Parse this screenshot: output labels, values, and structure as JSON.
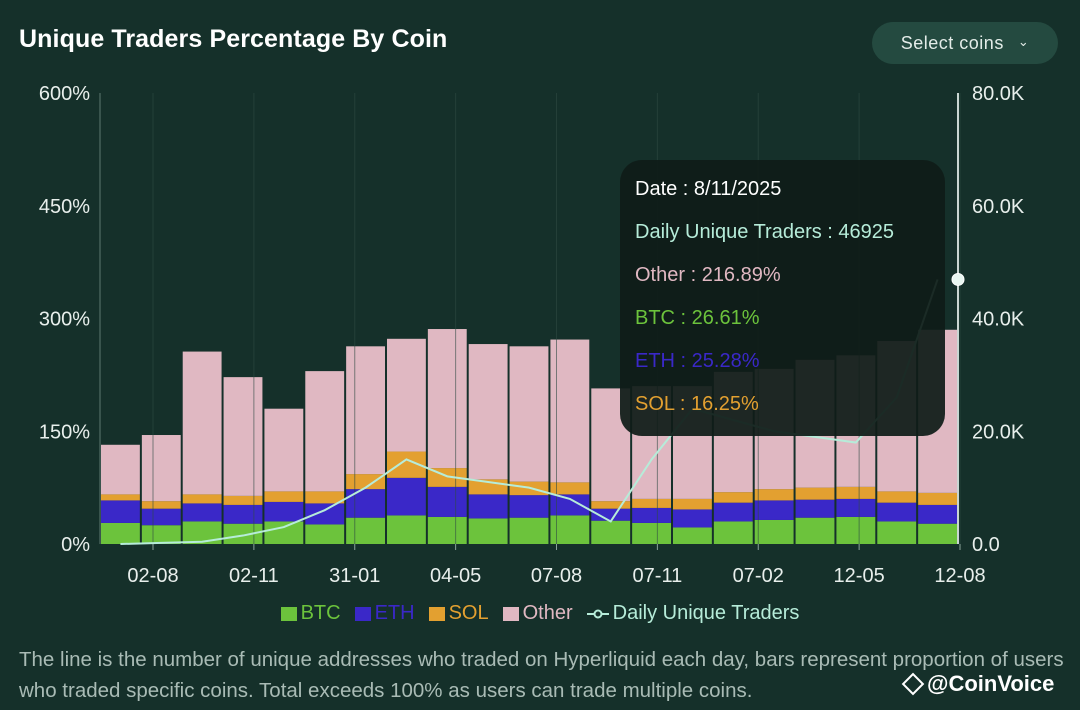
{
  "title": "Unique Traders Percentage By Coin",
  "select_button": {
    "label": "Select coins",
    "icon": "chevron-down-icon"
  },
  "colors": {
    "background": "#15302a",
    "btc": "#6cc33c",
    "eth": "#3a28c8",
    "sol": "#e3a030",
    "other": "#e0b8c2",
    "daily": "#b6ecd9"
  },
  "chart_data": {
    "type": "bar",
    "stacked": true,
    "y_left_ticks": [
      "0%",
      "150%",
      "300%",
      "450%",
      "600%"
    ],
    "y_left_range": [
      0,
      600
    ],
    "y_right_ticks": [
      "0.0",
      "20.0K",
      "40.0K",
      "60.0K",
      "80.0K"
    ],
    "y_right_range": [
      0,
      80000
    ],
    "x_ticks": [
      "02-08",
      "02-11",
      "31-01",
      "04-05",
      "07-08",
      "07-11",
      "07-02",
      "12-05",
      "12-08"
    ],
    "series": [
      {
        "name": "BTC",
        "values": [
          28,
          25,
          30,
          27,
          30,
          26,
          35,
          38,
          36,
          34,
          35,
          38,
          31,
          28,
          22,
          30,
          32,
          35,
          36,
          30,
          27
        ]
      },
      {
        "name": "ETH",
        "values": [
          30,
          22,
          24,
          25,
          26,
          28,
          38,
          50,
          40,
          32,
          30,
          28,
          16,
          20,
          24,
          25,
          26,
          24,
          24,
          25,
          25
        ]
      },
      {
        "name": "SOL",
        "values": [
          8,
          10,
          12,
          12,
          14,
          16,
          20,
          35,
          25,
          20,
          18,
          16,
          10,
          12,
          14,
          14,
          15,
          16,
          16,
          15,
          16
        ]
      },
      {
        "name": "Other",
        "values": [
          66,
          88,
          190,
          158,
          110,
          160,
          170,
          150,
          185,
          180,
          180,
          190,
          150,
          150,
          150,
          160,
          160,
          170,
          175,
          200,
          217
        ]
      },
      {
        "name": "Daily Unique Traders",
        "values": [
          0,
          200,
          400,
          1500,
          3000,
          6000,
          10000,
          15000,
          12000,
          11000,
          10000,
          8000,
          4000,
          15000,
          24000,
          22000,
          20000,
          19000,
          18000,
          26000,
          46925
        ]
      }
    ],
    "tooltip": {
      "date": "Date : 8/11/2025",
      "daily": "Daily Unique Traders : 46925",
      "other": "Other : 216.89%",
      "btc": "BTC : 26.61%",
      "eth": "ETH : 25.28%",
      "sol": "SOL : 16.25%"
    }
  },
  "legend": [
    {
      "label": "BTC",
      "color": "#6cc33c"
    },
    {
      "label": "ETH",
      "color": "#3a28c8"
    },
    {
      "label": "SOL",
      "color": "#e3a030"
    },
    {
      "label": "Other",
      "color": "#e0b8c2"
    },
    {
      "label": "Daily Unique Traders",
      "color": "#b6ecd9"
    }
  ],
  "caption": "The line is the number of unique addresses who traded on Hyperliquid each day, bars represent proportion of users who traded specific coins. Total exceeds 100% as users can trade multiple coins.",
  "watermark": "@CoinVoice"
}
